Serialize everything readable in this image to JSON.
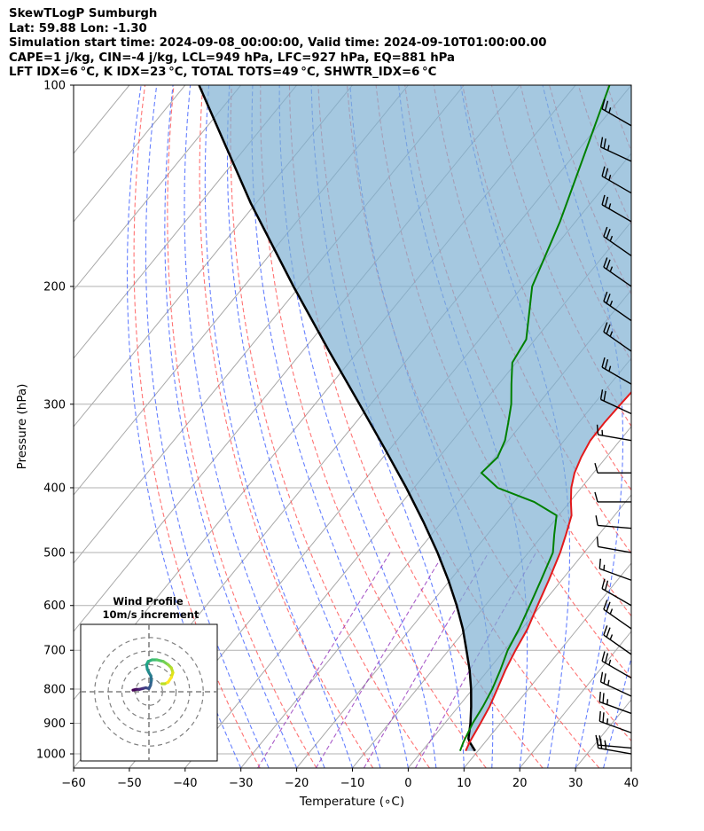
{
  "header": {
    "line1": "SkewTLogP Sumburgh",
    "line2": "Lat: 59.88   Lon: -1.30",
    "line3": "Simulation start time: 2024-09-08_00:00:00, Valid time: 2024-09-10T01:00:00.00",
    "line4": "CAPE=1 j/kg, CIN=-4 j/kg, LCL=949 hPa, LFC=927 hPa, EQ=881 hPa",
    "line5": "LFT IDX=6 °C, K IDX=23 °C, TOTAL TOTS=49 °C, SHWTR_IDX=6 °C"
  },
  "chart_data": {
    "type": "line",
    "title": "SkewTLogP Sumburgh",
    "xlabel": "Temperature (∘C)",
    "ylabel": "Pressure (hPa)",
    "xlim": [
      -60,
      40
    ],
    "ylim": [
      1050,
      100
    ],
    "x_ticks": [
      "−60",
      "−50",
      "−40",
      "−30",
      "−20",
      "−10",
      "0",
      "10",
      "20",
      "30",
      "40"
    ],
    "y_ticks": [
      "100",
      "200",
      "300",
      "400",
      "500",
      "600",
      "700",
      "800",
      "900",
      "1000"
    ],
    "y_scale": "log",
    "grid": true,
    "colors": {
      "temperature": "#e31a1c",
      "dewpoint": "#008000",
      "parcel": "#000000",
      "cape_fill": "#7fb0d3",
      "dry_adiabats": "#ff5050",
      "moist_adiabats": "#4060ff",
      "mixing_ratio": "#9a40c0",
      "isotherms": "#a0a0a0"
    },
    "series": [
      {
        "key": "temperature",
        "p": [
          990,
          960,
          900,
          850,
          800,
          750,
          700,
          650,
          600,
          550,
          500,
          470,
          440,
          420,
          400,
          380,
          360,
          340,
          320,
          300,
          280,
          260,
          240,
          220,
          200,
          180,
          160,
          150,
          140,
          130,
          120,
          110,
          100
        ],
        "t": [
          7.8,
          7.2,
          6.4,
          5.6,
          4.4,
          3.1,
          2.0,
          1.0,
          -0.6,
          -2.3,
          -4.3,
          -5.9,
          -7.7,
          -9.8,
          -11.8,
          -13.4,
          -14.5,
          -15.3,
          -15.4,
          -15.2,
          -14.9,
          -14.8,
          -15.1,
          -15.6,
          -16.3,
          -19.4,
          -24.0,
          -26.8,
          -30.4,
          -32.3,
          -32.7,
          -33.8,
          -34.9
        ]
      },
      {
        "key": "dewpoint",
        "p": [
          990,
          960,
          900,
          850,
          800,
          750,
          700,
          650,
          600,
          550,
          500,
          470,
          440,
          420,
          400,
          380,
          360,
          340,
          320,
          300,
          280,
          260,
          240,
          220,
          200,
          160,
          100
        ],
        "t": [
          6.8,
          6.1,
          5.0,
          4.4,
          3.5,
          2.2,
          0.6,
          -0.5,
          -2.0,
          -3.7,
          -5.6,
          -8.0,
          -10.4,
          -16.4,
          -25.0,
          -30.1,
          -29.5,
          -30.6,
          -32.6,
          -34.8,
          -37.7,
          -40.7,
          -41.6,
          -44.8,
          -48.3,
          -52.8,
          -63.9
        ]
      },
      {
        "key": "parcel",
        "p": [
          990,
          960,
          949,
          900,
          850,
          800,
          750,
          700,
          650,
          600,
          550,
          500,
          450,
          400,
          350,
          300,
          250,
          200,
          150,
          100
        ],
        "t": [
          9.5,
          7.2,
          6.5,
          4.6,
          2.3,
          -0.3,
          -3.3,
          -6.8,
          -10.6,
          -15.1,
          -20.3,
          -26.3,
          -33.3,
          -41.4,
          -50.9,
          -62.0,
          -75.2,
          -91.1,
          -111.0,
          -137.5
        ]
      }
    ],
    "annotations": {
      "cape_label": "CAPE",
      "lcl_hpa": 949,
      "lfc_hpa": 927,
      "eq_hpa": 881
    },
    "wind_barbs": {
      "p": [
        1000,
        980,
        930,
        870,
        820,
        770,
        710,
        650,
        600,
        550,
        500,
        460,
        420,
        380,
        340,
        310,
        280,
        250,
        225,
        200,
        180,
        160,
        145,
        130,
        115
      ],
      "speed_kt": [
        25,
        25,
        25,
        25,
        25,
        25,
        25,
        25,
        20,
        15,
        10,
        10,
        10,
        10,
        15,
        20,
        25,
        25,
        25,
        25,
        25,
        25,
        25,
        25,
        25
      ],
      "dir_deg": [
        280,
        275,
        290,
        290,
        295,
        300,
        305,
        305,
        300,
        290,
        280,
        275,
        270,
        270,
        280,
        295,
        300,
        305,
        305,
        305,
        305,
        300,
        300,
        295,
        300
      ]
    }
  },
  "inset": {
    "title1": "Wind Profile",
    "title2": "10m/s increment",
    "hodograph": {
      "u": [
        -10,
        -8,
        -6,
        -4,
        -2,
        0,
        1,
        1.5,
        1.2,
        0,
        -1,
        -1.5,
        -0.5,
        2,
        5,
        9,
        12,
        14,
        15,
        14,
        12,
        10,
        8
      ],
      "v": [
        1,
        1.5,
        1.5,
        2,
        2.5,
        2,
        4,
        7,
        10,
        12,
        14,
        17,
        19,
        20,
        20,
        19,
        17,
        15,
        12,
        9,
        6,
        5,
        5
      ],
      "colors": [
        "#440154",
        "#471365",
        "#482475",
        "#463480",
        "#3f4788",
        "#39558c",
        "#33638d",
        "#2d718e",
        "#287d8e",
        "#238a8d",
        "#1f968b",
        "#20a386",
        "#29af7f",
        "#3dbc74",
        "#56c667",
        "#75d054",
        "#95d840",
        "#bade28",
        "#dde318",
        "#fde725",
        "#fde725",
        "#bade28",
        "#95d840"
      ]
    }
  }
}
